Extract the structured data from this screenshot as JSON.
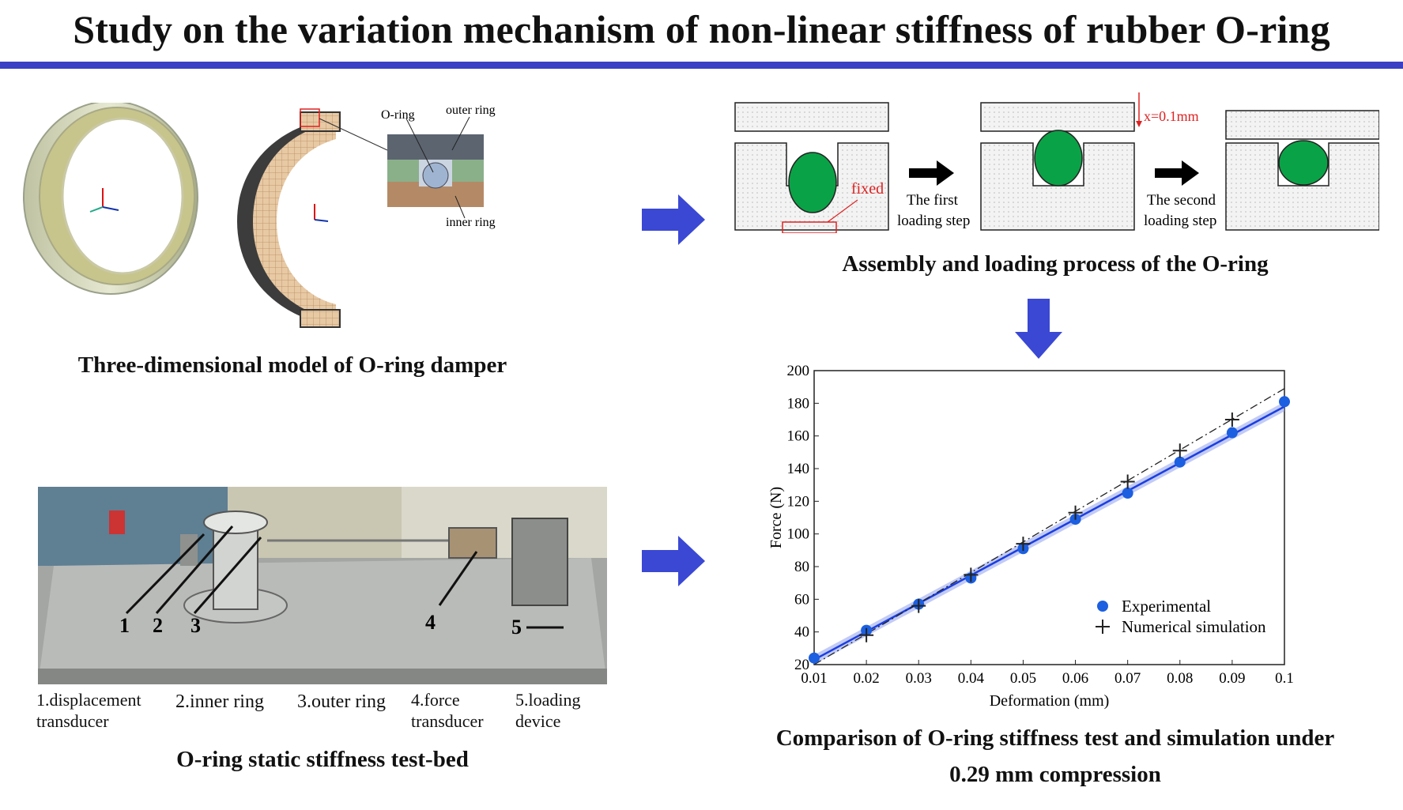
{
  "title": "Study on the variation mechanism of non-linear stiffness of rubber O-ring",
  "colors": {
    "accent": "#3a3fc4",
    "oring_green": "#0aa246",
    "exp_blue": "#1c5fe0"
  },
  "panel_3d": {
    "caption": "Three-dimensional model of O-ring damper",
    "labels": {
      "oring": "O-ring",
      "outer_ring": "outer ring",
      "inner_ring": "inner ring"
    }
  },
  "panel_assembly": {
    "caption": "Assembly and loading process of the O-ring",
    "fixed": "fixed",
    "x_label": "x=0.1mm",
    "step1": [
      "The first",
      "loading step"
    ],
    "step2": [
      "The second",
      "loading step"
    ]
  },
  "panel_testbed": {
    "caption": "O-ring static stiffness test-bed",
    "numbers": [
      "1",
      "2",
      "3",
      "4",
      "5"
    ],
    "legend": [
      [
        "1.displacement",
        "transducer"
      ],
      [
        "2.inner ring"
      ],
      [
        "3.outer ring"
      ],
      [
        "4.force",
        "transducer"
      ],
      [
        "5.loading",
        "device"
      ]
    ]
  },
  "panel_chart": {
    "caption_line1": "Comparison of O-ring stiffness test and simulation under",
    "caption_line2": "0.29 mm compression"
  },
  "chart_data": {
    "type": "scatter",
    "xlabel": "Deformation (mm)",
    "ylabel": "Force (N)",
    "xlim": [
      0.01,
      0.1
    ],
    "ylim": [
      20,
      200
    ],
    "xticks": [
      "0.01",
      "0.02",
      "0.03",
      "0.04",
      "0.05",
      "0.06",
      "0.07",
      "0.08",
      "0.09",
      "0.1"
    ],
    "yticks": [
      "20",
      "40",
      "60",
      "80",
      "100",
      "120",
      "140",
      "160",
      "180",
      "200"
    ],
    "legend_position": "bottom-right",
    "series": [
      {
        "name": "Experimental",
        "marker": "circle",
        "color": "#1c5fe0",
        "x": [
          0.01,
          0.02,
          0.03,
          0.04,
          0.05,
          0.06,
          0.07,
          0.08,
          0.09,
          0.1
        ],
        "y": [
          24,
          41,
          57,
          73,
          91,
          109,
          125,
          144,
          162,
          181
        ]
      },
      {
        "name": "Numerical simulation",
        "marker": "plus",
        "color": "#333333",
        "x": [
          0.02,
          0.03,
          0.04,
          0.05,
          0.06,
          0.07,
          0.08,
          0.09
        ],
        "y": [
          38,
          56,
          75,
          94,
          113,
          132,
          151,
          170
        ]
      }
    ],
    "fit_lines": [
      {
        "style": "solid-blue",
        "x": [
          0.01,
          0.1
        ],
        "y": [
          23,
          178
        ]
      },
      {
        "style": "dash-dot-black",
        "x": [
          0.01,
          0.1
        ],
        "y": [
          20,
          189
        ]
      }
    ]
  }
}
